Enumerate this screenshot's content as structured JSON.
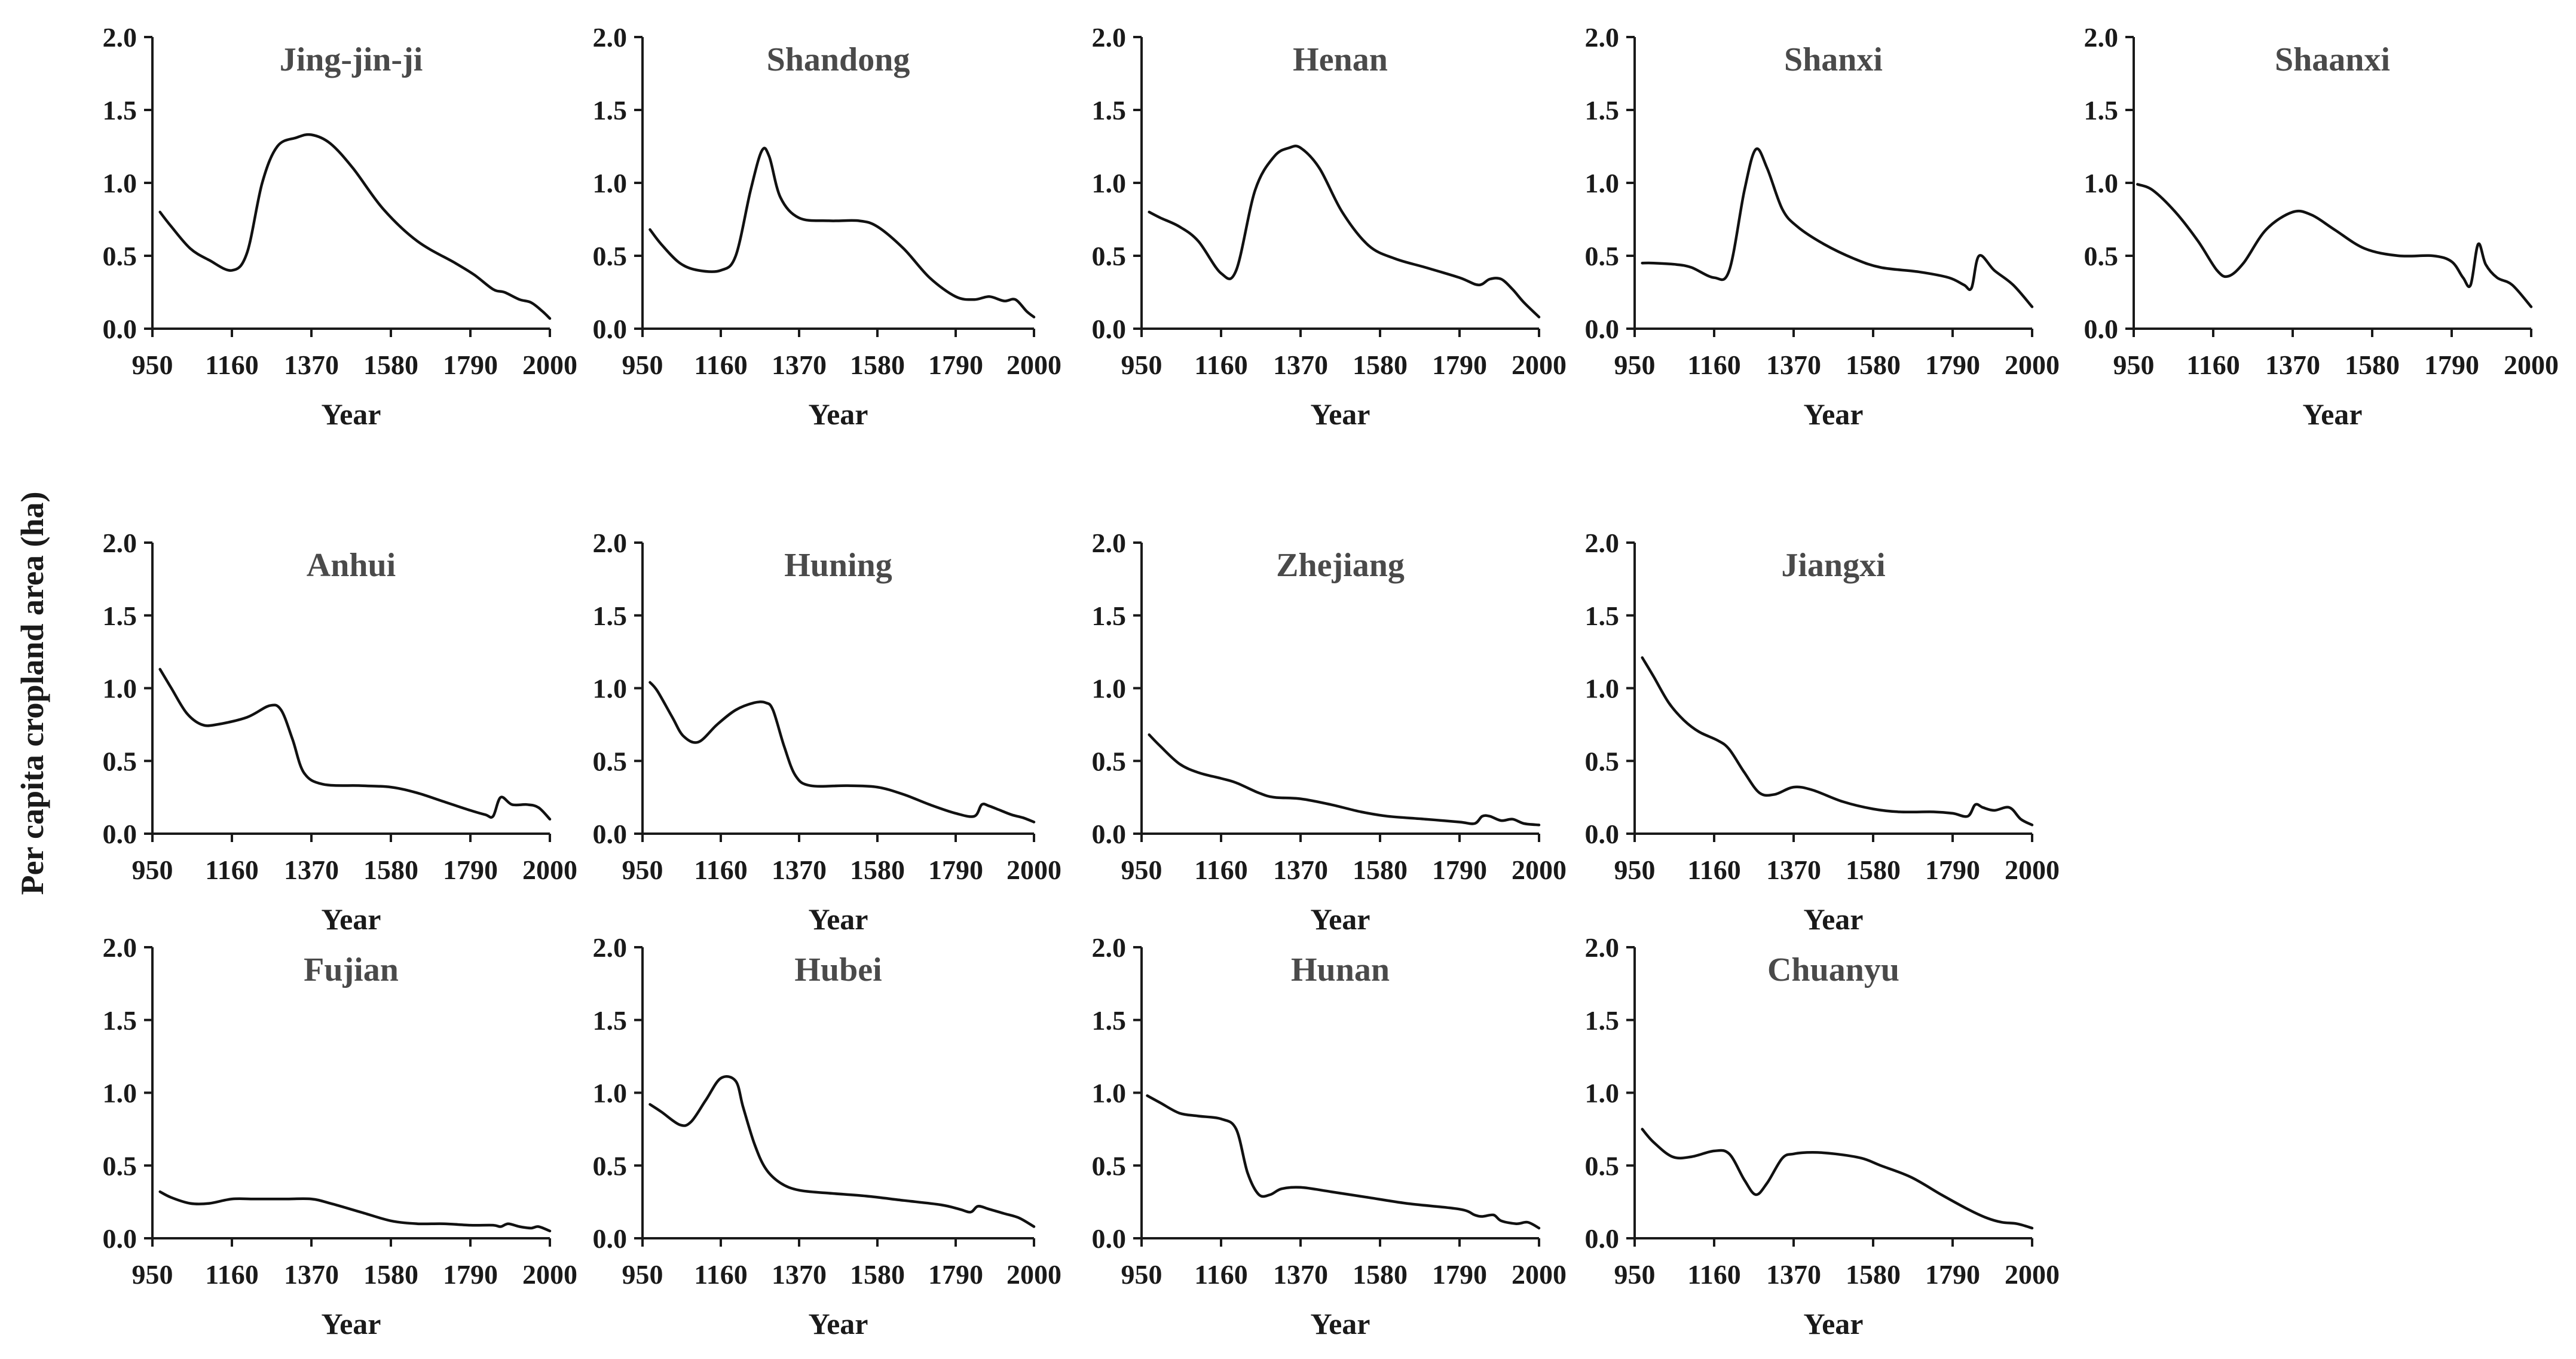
{
  "figure": {
    "ylabel": "Per capita cropland area (ha)",
    "xlabel": "Year"
  },
  "chart_data": [
    {
      "type": "line",
      "title": "Jing-jin-ji",
      "xlabel": "Year",
      "ylabel": "Per capita cropland area (ha)",
      "xlim": [
        950,
        2000
      ],
      "ylim": [
        0,
        2
      ],
      "x_ticks": [
        "950",
        "1160",
        "1370",
        "1580",
        "1790",
        "2000"
      ],
      "y_ticks": [
        "0.0",
        "0.5",
        "1.0",
        "1.5",
        "2.0"
      ],
      "x": [
        970,
        1000,
        1050,
        1100,
        1160,
        1200,
        1240,
        1280,
        1330,
        1370,
        1420,
        1480,
        1560,
        1650,
        1750,
        1800,
        1850,
        1880,
        1920,
        1950,
        1980,
        2000
      ],
      "y": [
        0.8,
        0.7,
        0.55,
        0.47,
        0.4,
        0.52,
        1.0,
        1.25,
        1.31,
        1.33,
        1.27,
        1.1,
        0.82,
        0.6,
        0.45,
        0.37,
        0.27,
        0.25,
        0.2,
        0.18,
        0.12,
        0.07
      ]
    },
    {
      "type": "line",
      "title": "Shandong",
      "xlabel": "Year",
      "ylabel": "Per capita cropland area (ha)",
      "xlim": [
        950,
        2000
      ],
      "ylim": [
        0,
        2
      ],
      "x_ticks": [
        "950",
        "1160",
        "1370",
        "1580",
        "1790",
        "2000"
      ],
      "y_ticks": [
        "0.0",
        "0.5",
        "1.0",
        "1.5",
        "2.0"
      ],
      "x": [
        970,
        1000,
        1050,
        1100,
        1160,
        1200,
        1240,
        1270,
        1290,
        1320,
        1370,
        1450,
        1530,
        1580,
        1650,
        1720,
        1790,
        1840,
        1880,
        1920,
        1950,
        1980,
        2000
      ],
      "y": [
        0.68,
        0.58,
        0.45,
        0.4,
        0.4,
        0.5,
        0.95,
        1.22,
        1.18,
        0.9,
        0.76,
        0.74,
        0.74,
        0.7,
        0.55,
        0.35,
        0.22,
        0.2,
        0.22,
        0.19,
        0.2,
        0.12,
        0.08
      ]
    },
    {
      "type": "line",
      "title": "Henan",
      "xlabel": "Year",
      "ylabel": "Per capita cropland area (ha)",
      "xlim": [
        950,
        2000
      ],
      "ylim": [
        0,
        2
      ],
      "x_ticks": [
        "950",
        "1160",
        "1370",
        "1580",
        "1790",
        "2000"
      ],
      "y_ticks": [
        "0.0",
        "0.5",
        "1.0",
        "1.5",
        "2.0"
      ],
      "x": [
        970,
        1000,
        1050,
        1100,
        1160,
        1200,
        1250,
        1300,
        1340,
        1370,
        1420,
        1480,
        1550,
        1620,
        1700,
        1790,
        1840,
        1870,
        1900,
        1930,
        1960,
        2000
      ],
      "y": [
        0.8,
        0.76,
        0.7,
        0.6,
        0.38,
        0.4,
        0.95,
        1.18,
        1.24,
        1.24,
        1.1,
        0.8,
        0.57,
        0.48,
        0.42,
        0.35,
        0.3,
        0.34,
        0.34,
        0.27,
        0.18,
        0.08
      ]
    },
    {
      "type": "line",
      "title": "Shanxi",
      "xlabel": "Year",
      "ylabel": "Per capita cropland area (ha)",
      "xlim": [
        950,
        2000
      ],
      "ylim": [
        0,
        2
      ],
      "x_ticks": [
        "950",
        "1160",
        "1370",
        "1580",
        "1790",
        "2000"
      ],
      "y_ticks": [
        "0.0",
        "0.5",
        "1.0",
        "1.5",
        "2.0"
      ],
      "x": [
        970,
        1000,
        1060,
        1100,
        1160,
        1200,
        1240,
        1270,
        1300,
        1340,
        1380,
        1450,
        1530,
        1600,
        1700,
        1780,
        1820,
        1840,
        1860,
        1900,
        1950,
        2000
      ],
      "y": [
        0.45,
        0.45,
        0.44,
        0.42,
        0.35,
        0.4,
        0.95,
        1.23,
        1.1,
        0.82,
        0.7,
        0.58,
        0.48,
        0.42,
        0.39,
        0.35,
        0.3,
        0.28,
        0.5,
        0.4,
        0.3,
        0.15
      ]
    },
    {
      "type": "line",
      "title": "Shaanxi",
      "xlabel": "Year",
      "ylabel": "Per capita cropland area (ha)",
      "xlim": [
        950,
        2000
      ],
      "ylim": [
        0,
        2
      ],
      "x_ticks": [
        "950",
        "1160",
        "1370",
        "1580",
        "1790",
        "2000"
      ],
      "y_ticks": [
        "0.0",
        "0.5",
        "1.0",
        "1.5",
        "2.0"
      ],
      "x": [
        960,
        1000,
        1060,
        1120,
        1170,
        1200,
        1240,
        1300,
        1370,
        1420,
        1480,
        1560,
        1650,
        1740,
        1790,
        1820,
        1840,
        1860,
        1880,
        1910,
        1950,
        2000
      ],
      "y": [
        0.99,
        0.95,
        0.8,
        0.6,
        0.4,
        0.36,
        0.45,
        0.68,
        0.8,
        0.78,
        0.68,
        0.55,
        0.5,
        0.5,
        0.46,
        0.35,
        0.3,
        0.58,
        0.44,
        0.35,
        0.3,
        0.15
      ]
    },
    {
      "type": "line",
      "title": "Anhui",
      "xlabel": "Year",
      "ylabel": "Per capita cropland area (ha)",
      "xlim": [
        950,
        2000
      ],
      "ylim": [
        0,
        2
      ],
      "x_ticks": [
        "950",
        "1160",
        "1370",
        "1580",
        "1790",
        "2000"
      ],
      "y_ticks": [
        "0.0",
        "0.5",
        "1.0",
        "1.5",
        "2.0"
      ],
      "x": [
        970,
        1000,
        1040,
        1080,
        1120,
        1200,
        1260,
        1290,
        1320,
        1350,
        1400,
        1500,
        1580,
        1650,
        1720,
        1790,
        1830,
        1850,
        1870,
        1900,
        1940,
        1970,
        2000
      ],
      "y": [
        1.13,
        1.0,
        0.83,
        0.75,
        0.75,
        0.8,
        0.88,
        0.85,
        0.65,
        0.42,
        0.34,
        0.33,
        0.32,
        0.28,
        0.22,
        0.16,
        0.13,
        0.12,
        0.25,
        0.2,
        0.2,
        0.18,
        0.1
      ]
    },
    {
      "type": "line",
      "title": "Huning",
      "xlabel": "Year",
      "ylabel": "Per capita cropland area (ha)",
      "xlim": [
        950,
        2000
      ],
      "ylim": [
        0,
        2
      ],
      "x_ticks": [
        "950",
        "1160",
        "1370",
        "1580",
        "1790",
        "2000"
      ],
      "y_ticks": [
        "0.0",
        "0.5",
        "1.0",
        "1.5",
        "2.0"
      ],
      "x": [
        970,
        990,
        1030,
        1060,
        1100,
        1150,
        1200,
        1250,
        1280,
        1300,
        1330,
        1360,
        1400,
        1500,
        1580,
        1650,
        1720,
        1790,
        1840,
        1860,
        1880,
        1910,
        1940,
        1970,
        2000
      ],
      "y": [
        1.04,
        0.98,
        0.8,
        0.67,
        0.63,
        0.75,
        0.85,
        0.9,
        0.9,
        0.85,
        0.6,
        0.4,
        0.33,
        0.33,
        0.32,
        0.27,
        0.2,
        0.14,
        0.12,
        0.2,
        0.19,
        0.16,
        0.13,
        0.11,
        0.08
      ]
    },
    {
      "type": "line",
      "title": "Zhejiang",
      "xlabel": "Year",
      "ylabel": "Per capita cropland area (ha)",
      "xlim": [
        950,
        2000
      ],
      "ylim": [
        0,
        2
      ],
      "x_ticks": [
        "950",
        "1160",
        "1370",
        "1580",
        "1790",
        "2000"
      ],
      "y_ticks": [
        "0.0",
        "0.5",
        "1.0",
        "1.5",
        "2.0"
      ],
      "x": [
        970,
        1000,
        1050,
        1100,
        1160,
        1200,
        1260,
        1300,
        1370,
        1450,
        1530,
        1600,
        1700,
        1790,
        1830,
        1850,
        1870,
        1900,
        1930,
        1960,
        2000
      ],
      "y": [
        0.68,
        0.6,
        0.48,
        0.42,
        0.38,
        0.35,
        0.28,
        0.25,
        0.24,
        0.2,
        0.15,
        0.12,
        0.1,
        0.08,
        0.07,
        0.12,
        0.12,
        0.09,
        0.1,
        0.07,
        0.06
      ]
    },
    {
      "type": "line",
      "title": "Jiangxi",
      "xlabel": "Year",
      "ylabel": "Per capita cropland area (ha)",
      "xlim": [
        950,
        2000
      ],
      "ylim": [
        0,
        2
      ],
      "x_ticks": [
        "950",
        "1160",
        "1370",
        "1580",
        "1790",
        "2000"
      ],
      "y_ticks": [
        "0.0",
        "0.5",
        "1.0",
        "1.5",
        "2.0"
      ],
      "x": [
        970,
        1000,
        1040,
        1080,
        1120,
        1170,
        1200,
        1240,
        1280,
        1320,
        1370,
        1420,
        1500,
        1580,
        1650,
        1740,
        1790,
        1830,
        1850,
        1870,
        1900,
        1940,
        1970,
        2000
      ],
      "y": [
        1.21,
        1.08,
        0.9,
        0.78,
        0.7,
        0.64,
        0.58,
        0.42,
        0.28,
        0.27,
        0.32,
        0.3,
        0.22,
        0.17,
        0.15,
        0.15,
        0.14,
        0.12,
        0.2,
        0.18,
        0.16,
        0.18,
        0.1,
        0.06
      ]
    },
    {
      "type": "line",
      "title": "Fujian",
      "xlabel": "Year",
      "ylabel": "Per capita cropland area (ha)",
      "xlim": [
        950,
        2000
      ],
      "ylim": [
        0,
        2
      ],
      "x_ticks": [
        "950",
        "1160",
        "1370",
        "1580",
        "1790",
        "2000"
      ],
      "y_ticks": [
        "0.0",
        "0.5",
        "1.0",
        "1.5",
        "2.0"
      ],
      "x": [
        970,
        1000,
        1050,
        1100,
        1160,
        1220,
        1300,
        1370,
        1420,
        1500,
        1580,
        1650,
        1720,
        1790,
        1850,
        1870,
        1890,
        1920,
        1950,
        1970,
        2000
      ],
      "y": [
        0.32,
        0.28,
        0.24,
        0.24,
        0.27,
        0.27,
        0.27,
        0.27,
        0.24,
        0.18,
        0.12,
        0.1,
        0.1,
        0.09,
        0.09,
        0.08,
        0.1,
        0.08,
        0.07,
        0.08,
        0.05
      ]
    },
    {
      "type": "line",
      "title": "Hubei",
      "xlabel": "Year",
      "ylabel": "Per capita cropland area (ha)",
      "xlim": [
        950,
        2000
      ],
      "ylim": [
        0,
        2
      ],
      "x_ticks": [
        "950",
        "1160",
        "1370",
        "1580",
        "1790",
        "2000"
      ],
      "y_ticks": [
        "0.0",
        "0.5",
        "1.0",
        "1.5",
        "2.0"
      ],
      "x": [
        970,
        1000,
        1050,
        1080,
        1120,
        1160,
        1200,
        1220,
        1250,
        1280,
        1320,
        1370,
        1450,
        1550,
        1650,
        1750,
        1800,
        1830,
        1850,
        1880,
        1920,
        1960,
        2000
      ],
      "y": [
        0.92,
        0.87,
        0.78,
        0.8,
        0.95,
        1.1,
        1.08,
        0.9,
        0.65,
        0.48,
        0.38,
        0.33,
        0.31,
        0.29,
        0.26,
        0.23,
        0.2,
        0.18,
        0.22,
        0.2,
        0.17,
        0.14,
        0.08
      ]
    },
    {
      "type": "line",
      "title": "Hunan",
      "xlabel": "Year",
      "ylabel": "Per capita cropland area (ha)",
      "xlim": [
        950,
        2000
      ],
      "ylim": [
        0,
        2
      ],
      "x_ticks": [
        "950",
        "1160",
        "1370",
        "1580",
        "1790",
        "2000"
      ],
      "y_ticks": [
        "0.0",
        "0.5",
        "1.0",
        "1.5",
        "2.0"
      ],
      "x": [
        965,
        1000,
        1050,
        1100,
        1160,
        1200,
        1230,
        1260,
        1290,
        1320,
        1370,
        1450,
        1550,
        1650,
        1790,
        1830,
        1850,
        1880,
        1900,
        1940,
        1970,
        2000
      ],
      "y": [
        0.98,
        0.93,
        0.86,
        0.84,
        0.82,
        0.75,
        0.45,
        0.3,
        0.3,
        0.34,
        0.35,
        0.32,
        0.28,
        0.24,
        0.2,
        0.16,
        0.15,
        0.16,
        0.12,
        0.1,
        0.11,
        0.07
      ]
    },
    {
      "type": "line",
      "title": "Chuanyu",
      "xlabel": "Year",
      "ylabel": "Per capita cropland area (ha)",
      "xlim": [
        950,
        2000
      ],
      "ylim": [
        0,
        2
      ],
      "x_ticks": [
        "950",
        "1160",
        "1370",
        "1580",
        "1790",
        "2000"
      ],
      "y_ticks": [
        "0.0",
        "0.5",
        "1.0",
        "1.5",
        "2.0"
      ],
      "x": [
        970,
        1000,
        1050,
        1100,
        1160,
        1200,
        1240,
        1270,
        1300,
        1340,
        1370,
        1420,
        1480,
        1550,
        1600,
        1680,
        1760,
        1830,
        1880,
        1920,
        1960,
        2000
      ],
      "y": [
        0.75,
        0.66,
        0.56,
        0.56,
        0.6,
        0.58,
        0.4,
        0.3,
        0.38,
        0.55,
        0.58,
        0.59,
        0.58,
        0.55,
        0.5,
        0.42,
        0.3,
        0.2,
        0.14,
        0.11,
        0.1,
        0.07
      ]
    }
  ]
}
